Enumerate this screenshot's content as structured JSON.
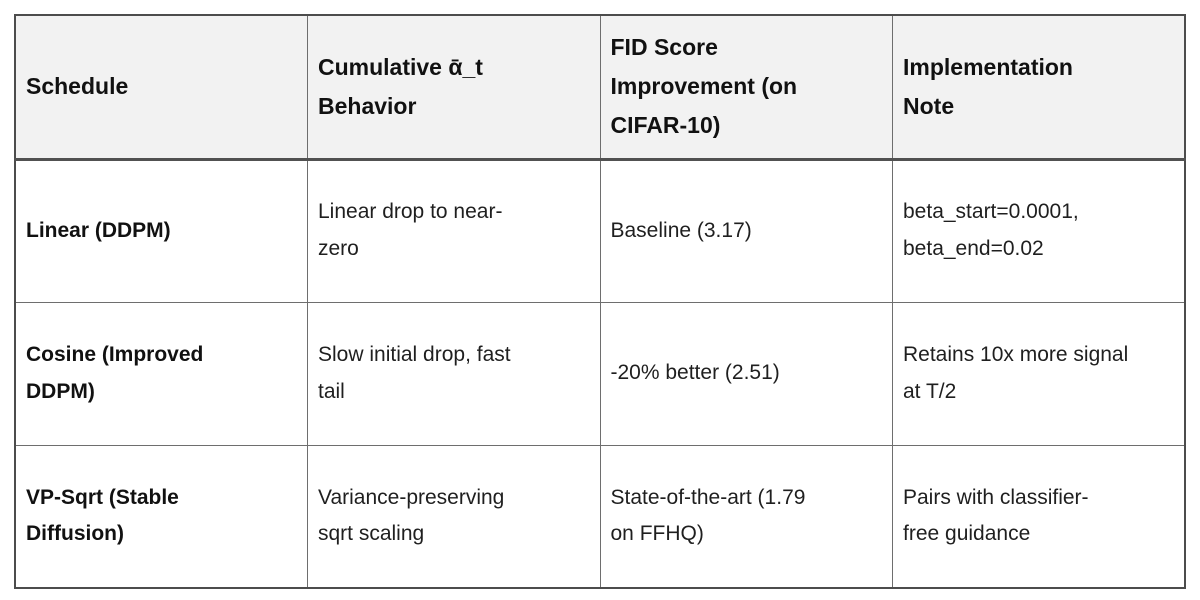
{
  "table": {
    "columns": [
      "Schedule",
      "Cumulative ᾱ_t\nBehavior",
      "FID Score\nImprovement (on\nCIFAR-10)",
      "Implementation\nNote"
    ],
    "rows": [
      {
        "schedule": "Linear (DDPM)",
        "behavior": "Linear drop to near-\nzero",
        "fid": "Baseline (3.17)",
        "note": "beta_start=0.0001,\nbeta_end=0.02"
      },
      {
        "schedule": "Cosine (Improved\nDDPM)",
        "behavior": "Slow initial drop, fast\ntail",
        "fid": "-20% better (2.51)",
        "note": "Retains 10x more signal\nat T/2"
      },
      {
        "schedule": "VP-Sqrt (Stable\nDiffusion)",
        "behavior": "Variance-preserving\nsqrt scaling",
        "fid": "State-of-the-art (1.79\non FFHQ)",
        "note": "Pairs with classifier-\nfree guidance"
      }
    ],
    "colors": {
      "header_bg": "#f2f2f2",
      "body_bg": "#ffffff",
      "border_inner": "#6e6e6e",
      "border_outer": "#4c4c4c",
      "header_text": "#111111",
      "body_text": "#1f1f1f"
    }
  }
}
